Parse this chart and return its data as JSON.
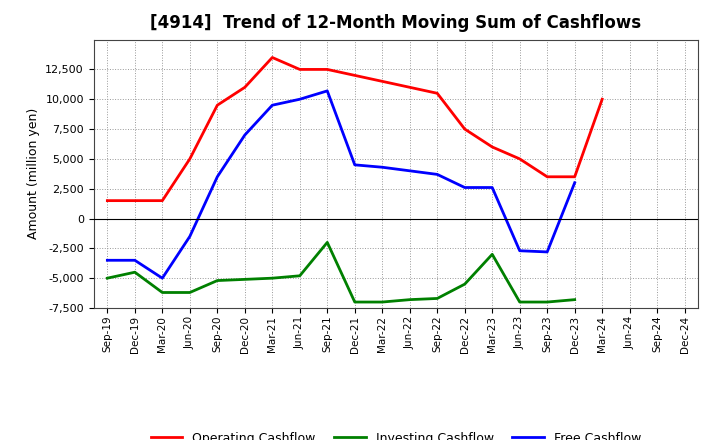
{
  "title": "[4914]  Trend of 12-Month Moving Sum of Cashflows",
  "ylabel": "Amount (million yen)",
  "xlabels": [
    "Sep-19",
    "Dec-19",
    "Mar-20",
    "Jun-20",
    "Sep-20",
    "Dec-20",
    "Mar-21",
    "Jun-21",
    "Sep-21",
    "Dec-21",
    "Mar-22",
    "Jun-22",
    "Sep-22",
    "Dec-22",
    "Mar-23",
    "Jun-23",
    "Sep-23",
    "Dec-23",
    "Mar-24",
    "Jun-24",
    "Sep-24",
    "Dec-24"
  ],
  "operating_cashflow": [
    1500,
    1500,
    1500,
    5000,
    9500,
    11000,
    13500,
    12500,
    12500,
    12000,
    11500,
    11000,
    10500,
    7500,
    6000,
    5000,
    3500,
    3500,
    10000,
    null,
    null,
    null
  ],
  "investing_cashflow": [
    -5000,
    -4500,
    -6200,
    -6200,
    -5200,
    -5100,
    -5000,
    -4800,
    -2000,
    -7000,
    -7000,
    -6800,
    -6700,
    -5500,
    -3000,
    -7000,
    -7000,
    -6800,
    null,
    null,
    null,
    null
  ],
  "free_cashflow": [
    -3500,
    -3500,
    -5000,
    -1500,
    3500,
    7000,
    9500,
    10000,
    10700,
    4500,
    4300,
    4000,
    3700,
    2600,
    2600,
    -2700,
    -2800,
    3000,
    null,
    null,
    null,
    null
  ],
  "operating_color": "#FF0000",
  "investing_color": "#008000",
  "free_color": "#0000FF",
  "ylim": [
    -7500,
    15000
  ],
  "yticks": [
    -7500,
    -5000,
    -2500,
    0,
    2500,
    5000,
    7500,
    10000,
    12500
  ],
  "background_color": "#FFFFFF",
  "grid_color": "#AAAAAA",
  "legend_labels": [
    "Operating Cashflow",
    "Investing Cashflow",
    "Free Cashflow"
  ]
}
